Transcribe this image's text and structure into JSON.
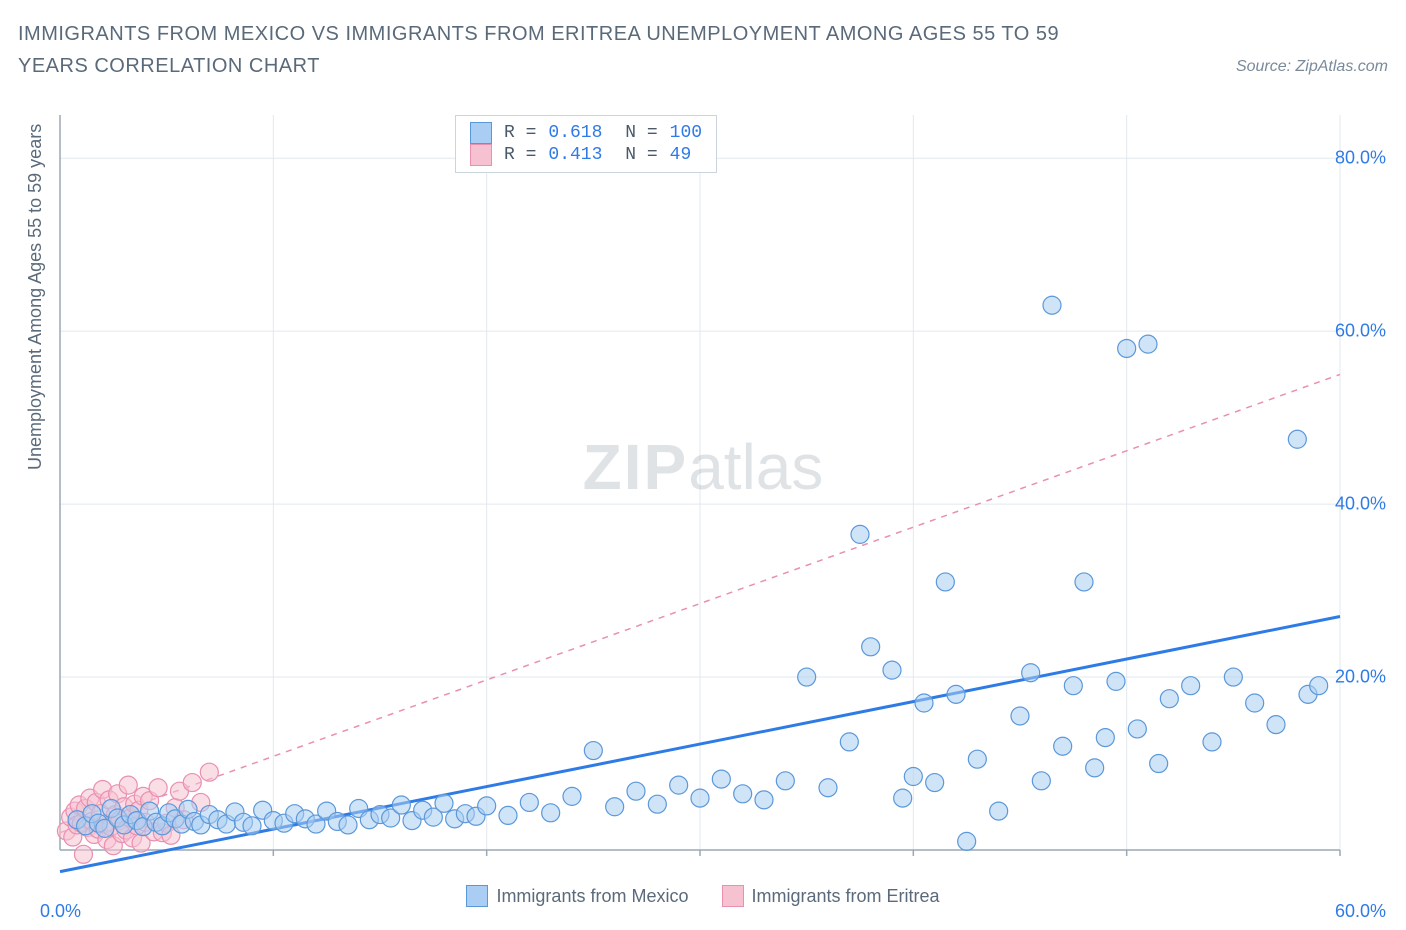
{
  "title": "IMMIGRANTS FROM MEXICO VS IMMIGRANTS FROM ERITREA UNEMPLOYMENT AMONG AGES 55 TO 59 YEARS CORRELATION CHART",
  "source": "Source: ZipAtlas.com",
  "yaxis_label": "Unemployment Among Ages 55 to 59 years",
  "watermark": {
    "bold": "ZIP",
    "rest": "atlas"
  },
  "chart": {
    "type": "scatter",
    "background_color": "#ffffff",
    "grid_color": "#e2e8ee",
    "axis_color": "#9aa8b6",
    "xlim": [
      0,
      60
    ],
    "ylim": [
      0,
      85
    ],
    "x_origin_label": "0.0%",
    "x_end_label": "60.0%",
    "y_ticks": [
      {
        "v": 20,
        "label": "20.0%"
      },
      {
        "v": 40,
        "label": "40.0%"
      },
      {
        "v": 60,
        "label": "60.0%"
      },
      {
        "v": 80,
        "label": "80.0%"
      }
    ],
    "x_grid_at": [
      10,
      20,
      30,
      40,
      50,
      60
    ],
    "marker_radius": 9,
    "marker_opacity": 0.55,
    "trend_line_width": 3,
    "series": [
      {
        "key": "mexico",
        "label": "Immigrants from Mexico",
        "color_fill": "#a9cdf3",
        "color_stroke": "#5b98da",
        "R": "0.618",
        "N": "100",
        "trend": {
          "x1": 0,
          "y1": -2.5,
          "x2": 60,
          "y2": 27,
          "dash": "none",
          "color": "#2e7be6"
        },
        "points": [
          [
            0.8,
            3.5
          ],
          [
            1.2,
            2.8
          ],
          [
            1.5,
            4.2
          ],
          [
            1.8,
            3.1
          ],
          [
            2.1,
            2.5
          ],
          [
            2.4,
            4.8
          ],
          [
            2.7,
            3.7
          ],
          [
            3.0,
            2.9
          ],
          [
            3.3,
            4.1
          ],
          [
            3.6,
            3.4
          ],
          [
            3.9,
            2.7
          ],
          [
            4.2,
            4.5
          ],
          [
            4.5,
            3.2
          ],
          [
            4.8,
            2.8
          ],
          [
            5.1,
            4.3
          ],
          [
            5.4,
            3.6
          ],
          [
            5.7,
            3.0
          ],
          [
            6.0,
            4.7
          ],
          [
            6.3,
            3.3
          ],
          [
            6.6,
            2.9
          ],
          [
            7.0,
            4.1
          ],
          [
            7.4,
            3.5
          ],
          [
            7.8,
            3.0
          ],
          [
            8.2,
            4.4
          ],
          [
            8.6,
            3.2
          ],
          [
            9.0,
            2.8
          ],
          [
            9.5,
            4.6
          ],
          [
            10.0,
            3.4
          ],
          [
            10.5,
            3.1
          ],
          [
            11.0,
            4.2
          ],
          [
            11.5,
            3.6
          ],
          [
            12.0,
            3.0
          ],
          [
            12.5,
            4.5
          ],
          [
            13.0,
            3.3
          ],
          [
            13.5,
            2.9
          ],
          [
            14.0,
            4.8
          ],
          [
            14.5,
            3.5
          ],
          [
            15.0,
            4.1
          ],
          [
            15.5,
            3.7
          ],
          [
            16.0,
            5.2
          ],
          [
            16.5,
            3.4
          ],
          [
            17.0,
            4.6
          ],
          [
            17.5,
            3.8
          ],
          [
            18.0,
            5.4
          ],
          [
            18.5,
            3.6
          ],
          [
            19.0,
            4.2
          ],
          [
            19.5,
            3.9
          ],
          [
            20.0,
            5.1
          ],
          [
            21.0,
            4.0
          ],
          [
            22.0,
            5.5
          ],
          [
            23.0,
            4.3
          ],
          [
            24.0,
            6.2
          ],
          [
            25.0,
            11.5
          ],
          [
            26.0,
            5.0
          ],
          [
            27.0,
            6.8
          ],
          [
            28.0,
            5.3
          ],
          [
            29.0,
            7.5
          ],
          [
            30.0,
            6.0
          ],
          [
            31.0,
            8.2
          ],
          [
            32.0,
            6.5
          ],
          [
            33.0,
            5.8
          ],
          [
            34.0,
            8.0
          ],
          [
            35.0,
            20.0
          ],
          [
            36.0,
            7.2
          ],
          [
            37.0,
            12.5
          ],
          [
            37.5,
            36.5
          ],
          [
            38.0,
            23.5
          ],
          [
            39.0,
            20.8
          ],
          [
            39.5,
            6.0
          ],
          [
            40.0,
            8.5
          ],
          [
            40.5,
            17.0
          ],
          [
            41.0,
            7.8
          ],
          [
            41.5,
            31.0
          ],
          [
            42.0,
            18.0
          ],
          [
            42.5,
            1.0
          ],
          [
            43.0,
            10.5
          ],
          [
            44.0,
            4.5
          ],
          [
            45.0,
            15.5
          ],
          [
            45.5,
            20.5
          ],
          [
            46.0,
            8.0
          ],
          [
            46.5,
            63.0
          ],
          [
            47.0,
            12.0
          ],
          [
            47.5,
            19.0
          ],
          [
            48.0,
            31.0
          ],
          [
            48.5,
            9.5
          ],
          [
            49.0,
            13.0
          ],
          [
            49.5,
            19.5
          ],
          [
            50.0,
            58.0
          ],
          [
            50.5,
            14.0
          ],
          [
            51.0,
            58.5
          ],
          [
            51.5,
            10.0
          ],
          [
            52.0,
            17.5
          ],
          [
            53.0,
            19.0
          ],
          [
            54.0,
            12.5
          ],
          [
            55.0,
            20.0
          ],
          [
            56.0,
            17.0
          ],
          [
            57.0,
            14.5
          ],
          [
            58.0,
            47.5
          ],
          [
            58.5,
            18.0
          ],
          [
            59.0,
            19.0
          ]
        ]
      },
      {
        "key": "eritrea",
        "label": "Immigrants from Eritrea",
        "color_fill": "#f6c2d1",
        "color_stroke": "#e98fb0",
        "R": "0.413",
        "N": " 49",
        "trend": {
          "x1": 0,
          "y1": 2.0,
          "x2": 60,
          "y2": 55,
          "dash": "6,6",
          "color": "#e98fb0"
        },
        "points": [
          [
            0.3,
            2.2
          ],
          [
            0.5,
            3.8
          ],
          [
            0.6,
            1.5
          ],
          [
            0.7,
            4.5
          ],
          [
            0.8,
            2.9
          ],
          [
            0.9,
            5.2
          ],
          [
            1.0,
            3.1
          ],
          [
            1.1,
            -0.5
          ],
          [
            1.2,
            4.8
          ],
          [
            1.3,
            2.6
          ],
          [
            1.4,
            6.0
          ],
          [
            1.5,
            3.3
          ],
          [
            1.6,
            1.8
          ],
          [
            1.7,
            5.5
          ],
          [
            1.8,
            2.4
          ],
          [
            1.9,
            4.2
          ],
          [
            2.0,
            7.0
          ],
          [
            2.1,
            3.0
          ],
          [
            2.2,
            1.2
          ],
          [
            2.3,
            5.8
          ],
          [
            2.4,
            2.7
          ],
          [
            2.5,
            0.5
          ],
          [
            2.6,
            4.1
          ],
          [
            2.7,
            6.5
          ],
          [
            2.8,
            3.4
          ],
          [
            2.9,
            1.9
          ],
          [
            3.0,
            5.0
          ],
          [
            3.1,
            2.3
          ],
          [
            3.2,
            7.5
          ],
          [
            3.3,
            3.7
          ],
          [
            3.4,
            1.4
          ],
          [
            3.5,
            5.3
          ],
          [
            3.6,
            2.8
          ],
          [
            3.7,
            4.6
          ],
          [
            3.8,
            0.8
          ],
          [
            3.9,
            6.2
          ],
          [
            4.0,
            3.2
          ],
          [
            4.2,
            5.7
          ],
          [
            4.4,
            2.1
          ],
          [
            4.6,
            7.2
          ],
          [
            4.8,
            2.0
          ],
          [
            5.0,
            3.1
          ],
          [
            5.2,
            1.7
          ],
          [
            5.4,
            4.9
          ],
          [
            5.6,
            6.8
          ],
          [
            5.8,
            3.5
          ],
          [
            6.2,
            7.8
          ],
          [
            6.6,
            5.5
          ],
          [
            7.0,
            9.0
          ]
        ]
      }
    ],
    "bottom_legend": [
      {
        "label": "Immigrants from Mexico",
        "fill": "#a9cdf3",
        "stroke": "#5b98da"
      },
      {
        "label": "Immigrants from Eritrea",
        "fill": "#f6c2d1",
        "stroke": "#e98fb0"
      }
    ]
  }
}
